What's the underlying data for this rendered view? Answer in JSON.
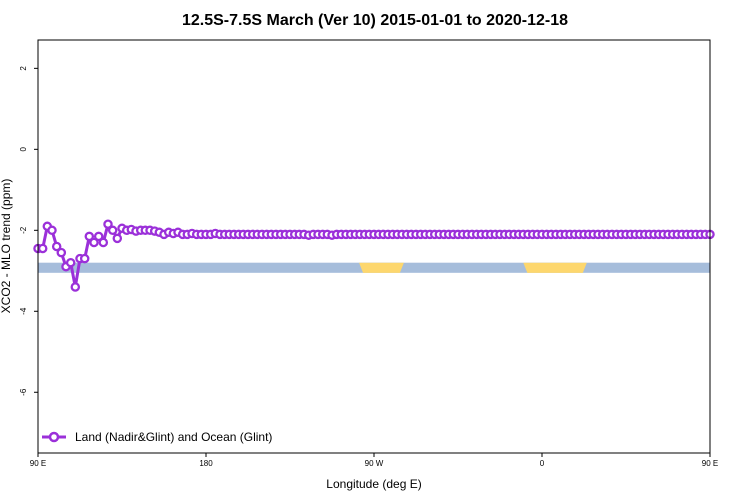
{
  "chart_data": {
    "type": "line",
    "title": "12.5S-7.5S March (Ver 10)   2015-01-01 to 2020-12-18",
    "xlabel": "Longitude (deg E)",
    "ylabel": "XCO2 - MLO trend (ppm)",
    "xlim": [
      90,
      450
    ],
    "ylim": [
      -7.5,
      2.7
    ],
    "x_ticks": [
      {
        "value": 90,
        "label": "90 E"
      },
      {
        "value": 180,
        "label": "180"
      },
      {
        "value": 270,
        "label": "90 W"
      },
      {
        "value": 360,
        "label": "0"
      },
      {
        "value": 450,
        "label": "90 E"
      },
      {
        "value": 540,
        "label": "180"
      }
    ],
    "y_ticks": [
      {
        "value": 2,
        "label": "2"
      },
      {
        "value": 0,
        "label": "0"
      },
      {
        "value": -2,
        "label": "-2"
      },
      {
        "value": -4,
        "label": "-4"
      },
      {
        "value": -6,
        "label": "-6"
      }
    ],
    "land_band": {
      "y_range": [
        -3.05,
        -2.8
      ],
      "color_ocean": "#a6bddb",
      "color_land": "#fdd76e",
      "land_segments": [
        [
          350,
          384
        ],
        [
          456,
          478
        ],
        [
          262,
          286
        ]
      ]
    },
    "series": [
      {
        "name": "Land (Nadir&Glint) and Ocean (Glint)",
        "color": "#9b30d9",
        "x": [
          90,
          92.5,
          95,
          97.5,
          100,
          102.5,
          105,
          107.5,
          110,
          112.5,
          115,
          117.5,
          120,
          122.5,
          125,
          127.5,
          130,
          132.5,
          135,
          137.5,
          140,
          142.5,
          145,
          147.5,
          150,
          152.5,
          155,
          157.5,
          160,
          162.5,
          165,
          167.5,
          170,
          172.5,
          175,
          177.5,
          180,
          182.5,
          185,
          187.5,
          190,
          192.5,
          195,
          197.5,
          200,
          202.5,
          205,
          207.5,
          210,
          212.5,
          215,
          217.5,
          220,
          222.5,
          225,
          227.5,
          230,
          232.5,
          235,
          237.5,
          240,
          242.5,
          245,
          247.5,
          250,
          252.5,
          255,
          257.5,
          260,
          262.5,
          265,
          267.5,
          270,
          272.5,
          275,
          277.5,
          280,
          282.5,
          285,
          287.5,
          290,
          292.5,
          295,
          297.5,
          300,
          302.5,
          305,
          307.5,
          310,
          312.5,
          315,
          317.5,
          320,
          322.5,
          325,
          327.5,
          330,
          332.5,
          335,
          337.5,
          340,
          342.5,
          345,
          347.5,
          350,
          352.5,
          355,
          357.5,
          360,
          362.5,
          365,
          367.5,
          370,
          372.5,
          375,
          377.5,
          380,
          382.5,
          385,
          387.5,
          390,
          392.5,
          395,
          397.5,
          400,
          402.5,
          405,
          407.5,
          410,
          412.5,
          415,
          417.5,
          420,
          422.5,
          425,
          427.5,
          430,
          432.5,
          435,
          437.5,
          440,
          442.5,
          445,
          447.5,
          450
        ],
        "values": [
          -2.45,
          -2.45,
          -1.9,
          -2.0,
          -2.4,
          -2.55,
          -2.9,
          -2.8,
          -3.4,
          -2.7,
          -2.7,
          -2.15,
          -2.3,
          -2.15,
          -2.3,
          -1.85,
          -2.0,
          -2.2,
          -1.95,
          -2.0,
          -1.98,
          -2.02,
          -2.0,
          -2.0,
          -2.0,
          -2.02,
          -2.05,
          -2.1,
          -2.05,
          -2.08,
          -2.05,
          -2.1,
          -2.1,
          -2.08,
          -2.1,
          -2.1,
          -2.1,
          -2.1,
          -2.08,
          -2.1,
          -2.1,
          -2.1,
          -2.1,
          -2.1,
          -2.1,
          -2.1,
          -2.1,
          -2.1,
          -2.1,
          -2.1,
          -2.1,
          -2.1,
          -2.1,
          -2.1,
          -2.1,
          -2.1,
          -2.1,
          -2.1,
          -2.12,
          -2.1,
          -2.1,
          -2.1,
          -2.1,
          -2.12,
          -2.1,
          -2.1,
          -2.1,
          -2.1,
          -2.1,
          -2.1,
          -2.1,
          -2.1,
          -2.1,
          -2.1,
          -2.1,
          -2.1,
          -2.1,
          -2.1,
          -2.1,
          -2.1,
          -2.1,
          -2.1,
          -2.1,
          -2.1,
          -2.1,
          -2.1,
          -2.1,
          -2.1,
          -2.1,
          -2.1,
          -2.1,
          -2.1,
          -2.1,
          -2.1,
          -2.1,
          -2.1,
          -2.1,
          -2.1,
          -2.1,
          -2.1,
          -2.1,
          -2.1,
          -2.1,
          -2.1,
          -2.1,
          -2.1,
          -2.1,
          -2.1,
          -2.1,
          -2.1,
          -2.1,
          -2.1,
          -2.1,
          -2.1,
          -2.1,
          -2.1,
          -2.1,
          -2.1,
          -2.1,
          -2.1,
          -2.1,
          -2.1,
          -2.1,
          -2.1,
          -2.1,
          -2.1,
          -2.1,
          -2.1,
          -2.1,
          -2.1,
          -2.1,
          -2.1,
          -2.1,
          -2.1,
          -2.1,
          -2.1,
          -2.1,
          -2.1,
          -2.1,
          -2.1,
          -2.1,
          -2.1,
          -2.1,
          -2.1,
          -2.1
        ]
      }
    ],
    "legend": {
      "placement": "bottom-left"
    },
    "grid": false
  }
}
